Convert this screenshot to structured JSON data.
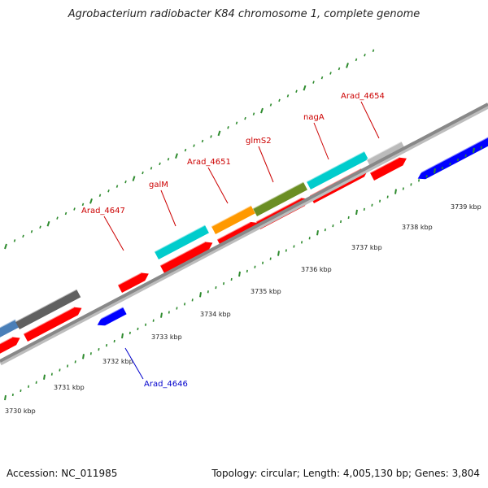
{
  "title": "Agrobacterium radiobacter K84 chromosome 1, complete genome",
  "footer": {
    "accession": "Accession: NC_011985",
    "summary": "Topology: circular; Length: 4,005,130 bp; Genes: 3,804"
  },
  "colors": {
    "backbone": "#888888",
    "ruler_ticks": "#2e8b2e",
    "label_red": "#cc0000",
    "label_blue": "#0000cc",
    "forward_gene": "#ff0000",
    "reverse_gene": "#0000ff"
  },
  "scale_labels": [
    {
      "text": "3730 kbp",
      "kbp": 3730
    },
    {
      "text": "3731 kbp",
      "kbp": 3731
    },
    {
      "text": "3732 kbp",
      "kbp": 3732
    },
    {
      "text": "3733 kbp",
      "kbp": 3733
    },
    {
      "text": "3734 kbp",
      "kbp": 3734
    },
    {
      "text": "3735 kbp",
      "kbp": 3735
    },
    {
      "text": "3736 kbp",
      "kbp": 3736
    },
    {
      "text": "3737 kbp",
      "kbp": 3737
    },
    {
      "text": "3738 kbp",
      "kbp": 3738
    },
    {
      "text": "3739 kbp",
      "kbp": 3739
    }
  ],
  "gene_labels": [
    {
      "text": "Arad_4647",
      "color": "#cc0000"
    },
    {
      "text": "galM",
      "color": "#cc0000"
    },
    {
      "text": "Arad_4651",
      "color": "#cc0000"
    },
    {
      "text": "glmS2",
      "color": "#cc0000"
    },
    {
      "text": "nagA",
      "color": "#cc0000"
    },
    {
      "text": "Arad_4654",
      "color": "#cc0000"
    },
    {
      "text": "Arad_4646",
      "color": "#0000cc"
    }
  ],
  "cog_colors": [
    "#4a7fb8",
    "#606060",
    "#00cccc",
    "#ff9900",
    "#6b8e23",
    "#00cccc",
    "#bbbbbb"
  ]
}
